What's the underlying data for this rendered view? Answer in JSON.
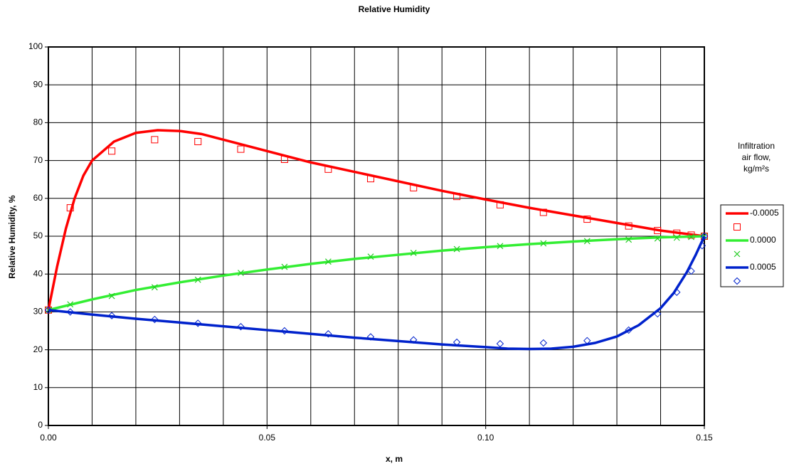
{
  "chart_data": {
    "type": "line",
    "title": "Relative Humidity",
    "x_label": "x, m",
    "y_label": "Relative Humidity, %",
    "xlim": [
      0,
      0.15
    ],
    "ylim": [
      0,
      100
    ],
    "xticks": [
      {
        "value": 0,
        "label": "0.00"
      },
      {
        "value": 0.05,
        "label": "0.05"
      },
      {
        "value": 0.1,
        "label": "0.10"
      },
      {
        "value": 0.15,
        "label": "0.15"
      }
    ],
    "xgrid": [
      0,
      0.01,
      0.02,
      0.03,
      0.04,
      0.05,
      0.06,
      0.07,
      0.08,
      0.09,
      0.1,
      0.11,
      0.12,
      0.13,
      0.14,
      0.15
    ],
    "yticks": [
      0,
      10,
      20,
      30,
      40,
      50,
      60,
      70,
      80,
      90,
      100
    ],
    "grid": true,
    "legend_position": "right",
    "legend_title": [
      "Infiltration",
      "air flow,",
      "kg/m²s"
    ],
    "series": [
      {
        "name": "-0.0005",
        "style": "line",
        "color": "#ff0000",
        "x": [
          0,
          0.002,
          0.004,
          0.006,
          0.008,
          0.01,
          0.015,
          0.02,
          0.025,
          0.03,
          0.035,
          0.04,
          0.05,
          0.06,
          0.07,
          0.08,
          0.09,
          0.1,
          0.11,
          0.12,
          0.13,
          0.14,
          0.15
        ],
        "values": [
          30.5,
          42,
          52,
          60,
          66,
          70,
          75,
          77.3,
          78,
          77.8,
          77,
          75.5,
          72.5,
          69.5,
          67,
          64.5,
          62,
          59.7,
          57.5,
          55.5,
          53.5,
          51.5,
          50
        ]
      },
      {
        "style": "marker",
        "marker": "square",
        "color": "#ff0000",
        "x": [
          0,
          0.005,
          0.0145,
          0.0243,
          0.0342,
          0.044,
          0.054,
          0.064,
          0.0737,
          0.0835,
          0.0934,
          0.1033,
          0.1132,
          0.1232,
          0.1327,
          0.1393,
          0.1437,
          0.147,
          0.15
        ],
        "values": [
          30.5,
          57.5,
          72.5,
          75.5,
          75,
          73,
          70.3,
          67.7,
          65.2,
          62.8,
          60.5,
          58.3,
          56.3,
          54.5,
          52.7,
          51.5,
          50.8,
          50.3,
          50
        ]
      },
      {
        "name": "0.0000",
        "style": "line",
        "color": "#33ee33",
        "x": [
          0,
          0.01,
          0.02,
          0.03,
          0.04,
          0.05,
          0.06,
          0.07,
          0.08,
          0.09,
          0.1,
          0.11,
          0.12,
          0.13,
          0.14,
          0.15
        ],
        "values": [
          30.5,
          33.3,
          35.8,
          37.8,
          39.6,
          41.2,
          42.7,
          44,
          45.1,
          46.2,
          47.1,
          47.9,
          48.6,
          49.2,
          49.7,
          50
        ]
      },
      {
        "style": "marker",
        "marker": "x",
        "color": "#22cc22",
        "x": [
          0,
          0.005,
          0.0145,
          0.0243,
          0.0342,
          0.044,
          0.054,
          0.064,
          0.0737,
          0.0835,
          0.0934,
          0.1033,
          0.1132,
          0.1232,
          0.1327,
          0.1393,
          0.1437,
          0.147,
          0.15
        ],
        "values": [
          30.5,
          32,
          34.2,
          36.5,
          38.5,
          40.3,
          41.9,
          43.3,
          44.6,
          45.6,
          46.6,
          47.4,
          48.1,
          48.7,
          49.1,
          49.4,
          49.6,
          49.8,
          50
        ]
      },
      {
        "name": "0.0005",
        "style": "line",
        "color": "#0022cc",
        "x": [
          0,
          0.01,
          0.02,
          0.03,
          0.04,
          0.05,
          0.06,
          0.07,
          0.08,
          0.09,
          0.1,
          0.105,
          0.11,
          0.115,
          0.12,
          0.125,
          0.13,
          0.135,
          0.14,
          0.143,
          0.146,
          0.148,
          0.15
        ],
        "values": [
          30.5,
          29.3,
          28.2,
          27.2,
          26.2,
          25.2,
          24.2,
          23.2,
          22.3,
          21.4,
          20.7,
          20.3,
          20.2,
          20.3,
          20.8,
          21.8,
          23.5,
          26.5,
          31,
          35,
          40.5,
          45,
          50
        ]
      },
      {
        "style": "marker",
        "marker": "diamond",
        "color": "#0022cc",
        "x": [
          0,
          0.005,
          0.0145,
          0.0243,
          0.0342,
          0.044,
          0.054,
          0.064,
          0.0737,
          0.0835,
          0.0934,
          0.1033,
          0.1132,
          0.1232,
          0.1327,
          0.1393,
          0.1437,
          0.147,
          0.1495,
          0.15
        ],
        "values": [
          30.5,
          30,
          29,
          28,
          27,
          26.1,
          25,
          24.2,
          23.4,
          22.6,
          22,
          21.6,
          21.8,
          22.4,
          25.2,
          29.5,
          35.2,
          40.8,
          47.5,
          50
        ]
      }
    ]
  }
}
